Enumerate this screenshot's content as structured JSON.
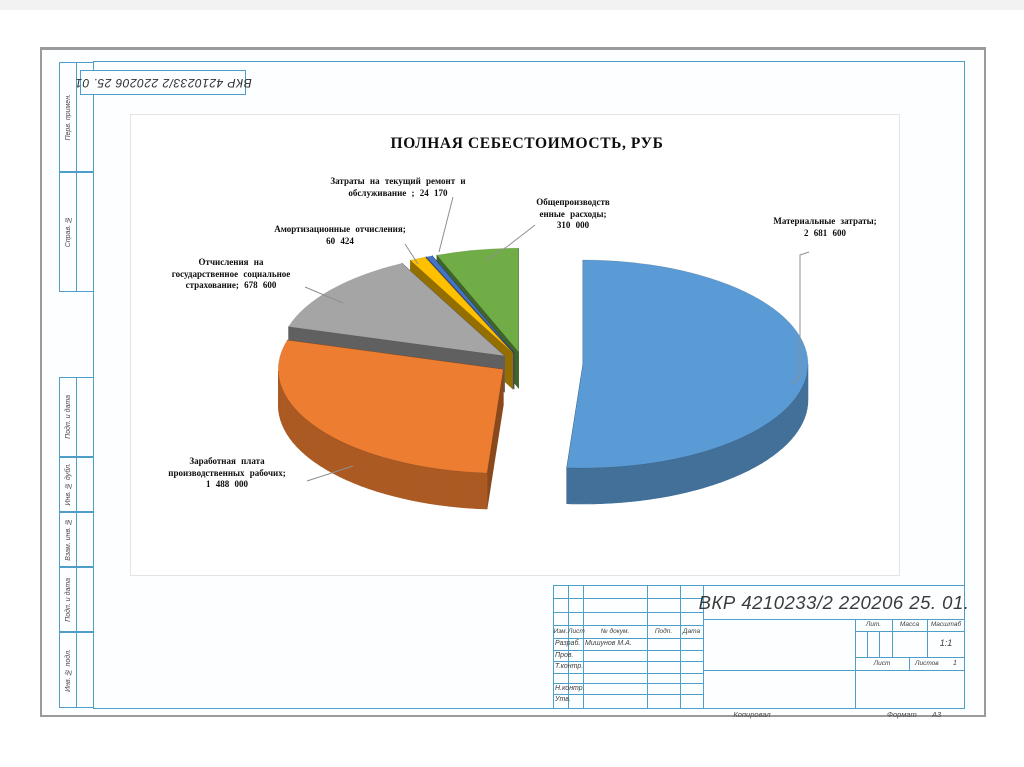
{
  "sheet": {
    "designation_top": "ВКР 4210233/2 220206 25. 01",
    "margin_labels": [
      "Перв. примен.",
      "Справ. №",
      "Подп. и дата",
      "Инв. № дубл.",
      "Взам. инв. №",
      "Подп. и дата",
      "Инв. № подл."
    ],
    "footer": {
      "copied": "Копировал",
      "format_label": "Формат",
      "format_value": "А3"
    }
  },
  "titleblock": {
    "designation": "ВКР 4210233/2 220206 25. 01.",
    "cols": {
      "izm": "Изм.",
      "list": "Лист",
      "doc": "№ докум.",
      "podp": "Подп.",
      "data": "Дата"
    },
    "rows": [
      {
        "label": "Разраб.",
        "value": "Мишунов М.А."
      },
      {
        "label": "Пров.",
        "value": ""
      },
      {
        "label": "Т.контр.",
        "value": ""
      },
      {
        "label": "Н.контр.",
        "value": ""
      },
      {
        "label": "Утв.",
        "value": ""
      }
    ],
    "lit_label": "Лит.",
    "massa_label": "Масса",
    "masshtab_label": "Масштаб",
    "masshtab_value": "1:1",
    "list_label": "Лист",
    "listov_label": "Листов",
    "listov_value": "1"
  },
  "chart_data": {
    "type": "pie",
    "title": "ПОЛНАЯ СЕБЕСТОИМОСТЬ, РУБ",
    "units": "руб",
    "total": 5242794,
    "style": {
      "effect": "3d-exploded-pie",
      "start_angle_deg": 0,
      "clockwise": true,
      "legend": "none",
      "labels": "outside-with-leader-lines",
      "leader_line_color": "#8f8f8f"
    },
    "slices": [
      {
        "id": "material",
        "name": "Материальные затраты",
        "value": 2681600,
        "color": "#5B9BD5",
        "label_lines": [
          "Материальные затраты;",
          "2 681 600"
        ]
      },
      {
        "id": "wages",
        "name": "Заработная плата производственных рабочих",
        "value": 1488000,
        "color": "#ED7D31",
        "label_lines": [
          "Заработная плата",
          "производственных рабочих;",
          "1 488 000"
        ]
      },
      {
        "id": "social",
        "name": "Отчисления на государственное социальное страхование",
        "value": 678600,
        "color": "#A5A5A5",
        "label_lines": [
          "Отчисления на",
          "государственное социальное",
          "страхование; 678 600"
        ]
      },
      {
        "id": "amortization",
        "name": "Амортизационные отчисления",
        "value": 60424,
        "color": "#FFC000",
        "label_lines": [
          "Амортизационные отчисления;",
          "60 424"
        ]
      },
      {
        "id": "repair",
        "name": "Затраты на текущий ремонт и обслуживание",
        "value": 24170,
        "color": "#4472C4",
        "label_lines": [
          "Затраты на текущий ремонт и",
          "обслуживание ; 24 170"
        ]
      },
      {
        "id": "overhead",
        "name": "Общепроизводственные расходы",
        "value": 310000,
        "color": "#70AD47",
        "label_lines": [
          "Общепроизводств",
          "енные расходы;",
          "310 000"
        ]
      }
    ]
  },
  "colors": {
    "frame": "#4d9fc7",
    "sheet_border": "#9b9b9b",
    "slice_colors": [
      "#5B9BD5",
      "#ED7D31",
      "#A5A5A5",
      "#FFC000",
      "#4472C4",
      "#70AD47"
    ]
  }
}
